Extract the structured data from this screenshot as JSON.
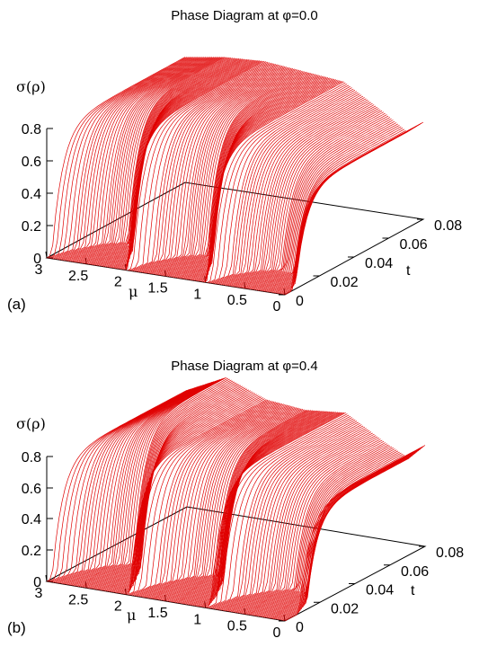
{
  "chart_data": [
    {
      "type": "3d-surface-lines",
      "panel_label": "(a)",
      "title": "Phase Diagram at φ=0.0",
      "zlabel": "σ(ρ)",
      "xlabel": "μ",
      "ylabel": "t",
      "z_ticks": [
        "0",
        "0.2",
        "0.4",
        "0.6",
        "0.8"
      ],
      "x_ticks": [
        "3",
        "2.5",
        "2",
        "1.5",
        "1",
        "0.5",
        "0"
      ],
      "y_ticks": [
        "0",
        "0.02",
        "0.04",
        "0.06",
        "0.08"
      ],
      "xlim": [
        3,
        0
      ],
      "ylim": [
        0,
        0.08
      ],
      "zlim": [
        0,
        0.8
      ],
      "line_color": "#e00000",
      "lobe_boundaries_mu": [
        3,
        2,
        1,
        0
      ],
      "t_c_mu_curve": [
        [
          3,
          0.003
        ],
        [
          2.9,
          0.011
        ],
        [
          2.7,
          0.02
        ],
        [
          2.5,
          0.024
        ],
        [
          2.3,
          0.018
        ],
        [
          2.1,
          0.006
        ],
        [
          2,
          0.001
        ],
        [
          1.9,
          0.011
        ],
        [
          1.7,
          0.02
        ],
        [
          1.5,
          0.024
        ],
        [
          1.3,
          0.018
        ],
        [
          1.1,
          0.006
        ],
        [
          1,
          0.001
        ],
        [
          0.9,
          0.01
        ],
        [
          0.7,
          0.017
        ],
        [
          0.5,
          0.021
        ],
        [
          0.3,
          0.019
        ],
        [
          0.1,
          0.011
        ],
        [
          0,
          0.004
        ]
      ],
      "sigma_at_t_max_mu": [
        [
          3,
          0.62
        ],
        [
          2.5,
          0.65
        ],
        [
          2,
          0.66
        ],
        [
          1.5,
          0.64
        ],
        [
          1,
          0.62
        ],
        [
          0.5,
          0.5
        ],
        [
          0.2,
          0.42
        ],
        [
          0,
          0.48
        ]
      ]
    },
    {
      "type": "3d-surface-lines",
      "panel_label": "(b)",
      "title": "Phase Diagram at φ=0.4",
      "zlabel": "σ(ρ)",
      "xlabel": "μ",
      "ylabel": "t",
      "z_ticks": [
        "0",
        "0.2",
        "0.4",
        "0.6",
        "0.8"
      ],
      "x_ticks": [
        "3",
        "2.5",
        "2",
        "1.5",
        "1",
        "0.5",
        "0"
      ],
      "y_ticks": [
        "0",
        "0.02",
        "0.04",
        "0.06",
        "0.08"
      ],
      "xlim": [
        3,
        0
      ],
      "ylim": [
        0,
        0.08
      ],
      "zlim": [
        0,
        0.8
      ],
      "line_color": "#e00000",
      "lobe_boundaries_mu": [
        3,
        2,
        1,
        0
      ],
      "t_c_mu_curve": [
        [
          3,
          0.003
        ],
        [
          2.9,
          0.012
        ],
        [
          2.7,
          0.022
        ],
        [
          2.5,
          0.027
        ],
        [
          2.3,
          0.022
        ],
        [
          2.1,
          0.009
        ],
        [
          2,
          0.002
        ],
        [
          1.9,
          0.013
        ],
        [
          1.7,
          0.024
        ],
        [
          1.5,
          0.029
        ],
        [
          1.3,
          0.024
        ],
        [
          1.1,
          0.011
        ],
        [
          1,
          0.003
        ],
        [
          0.9,
          0.014
        ],
        [
          0.7,
          0.023
        ],
        [
          0.5,
          0.028
        ],
        [
          0.3,
          0.026
        ],
        [
          0.1,
          0.017
        ],
        [
          0,
          0.008
        ]
      ],
      "sigma_at_t_max_mu": [
        [
          3,
          0.6
        ],
        [
          2.5,
          0.7
        ],
        [
          2,
          0.62
        ],
        [
          1.5,
          0.6
        ],
        [
          1,
          0.62
        ],
        [
          0.5,
          0.5
        ],
        [
          0.2,
          0.44
        ],
        [
          0,
          0.52
        ]
      ]
    }
  ]
}
